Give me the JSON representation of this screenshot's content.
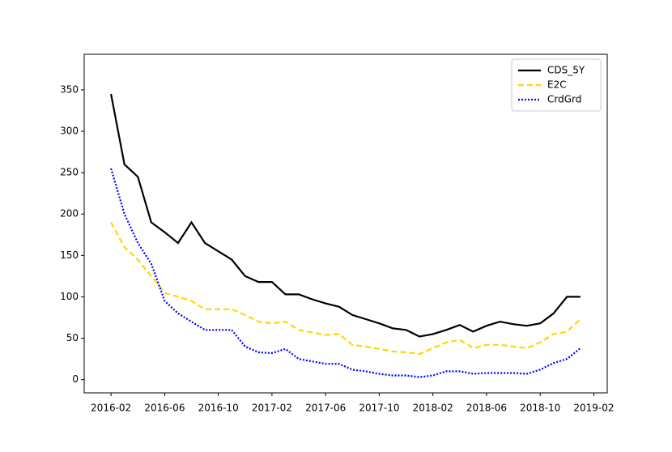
{
  "chart_data": {
    "type": "line",
    "x": [
      "2016-02",
      "2016-03",
      "2016-04",
      "2016-05",
      "2016-06",
      "2016-07",
      "2016-08",
      "2016-09",
      "2016-10",
      "2016-11",
      "2016-12",
      "2017-01",
      "2017-02",
      "2017-03",
      "2017-04",
      "2017-05",
      "2017-06",
      "2017-07",
      "2017-08",
      "2017-09",
      "2017-10",
      "2017-11",
      "2017-12",
      "2018-01",
      "2018-02",
      "2018-03",
      "2018-04",
      "2018-05",
      "2018-06",
      "2018-07",
      "2018-08",
      "2018-09",
      "2018-10",
      "2018-11",
      "2018-12",
      "2019-01"
    ],
    "series": [
      {
        "name": "CDS_5Y",
        "color": "#000000",
        "linestyle": "solid",
        "values": [
          345,
          260,
          245,
          190,
          178,
          165,
          190,
          165,
          155,
          145,
          125,
          118,
          118,
          103,
          103,
          97,
          92,
          88,
          78,
          73,
          68,
          62,
          60,
          52,
          55,
          60,
          66,
          58,
          65,
          70,
          67,
          65,
          68,
          80,
          100,
          100
        ]
      },
      {
        "name": "E2C",
        "color": "#ffd700",
        "linestyle": "dashed",
        "values": [
          190,
          160,
          145,
          125,
          105,
          100,
          95,
          85,
          85,
          85,
          78,
          70,
          68,
          70,
          60,
          57,
          54,
          55,
          42,
          40,
          37,
          34,
          33,
          31,
          38,
          45,
          48,
          38,
          42,
          42,
          40,
          38,
          45,
          55,
          58,
          73
        ]
      },
      {
        "name": "CrdGrd",
        "color": "#0000ff",
        "linestyle": "dotted",
        "values": [
          255,
          200,
          165,
          140,
          95,
          80,
          70,
          60,
          60,
          60,
          40,
          33,
          32,
          37,
          25,
          22,
          19,
          19,
          12,
          10,
          7,
          5,
          5,
          3,
          5,
          10,
          10,
          7,
          8,
          8,
          8,
          7,
          12,
          20,
          25,
          38
        ]
      }
    ],
    "xlim": [
      "2015-12",
      "2019-03"
    ],
    "xticks": [
      "2016-02",
      "2016-06",
      "2016-10",
      "2017-02",
      "2017-06",
      "2017-10",
      "2018-02",
      "2018-06",
      "2018-10",
      "2019-02"
    ],
    "ylim": [
      -16,
      393
    ],
    "yticks": [
      0,
      50,
      100,
      150,
      200,
      250,
      300,
      350
    ],
    "legend": "upper right",
    "grid": false
  }
}
